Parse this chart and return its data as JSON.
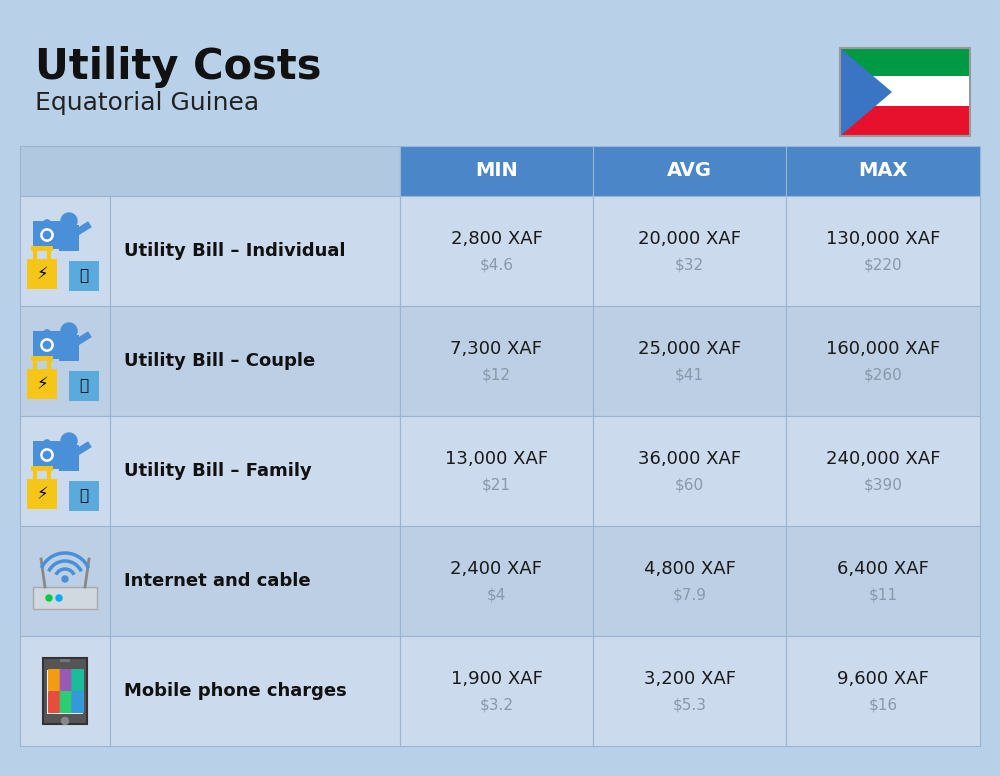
{
  "title": "Utility Costs",
  "subtitle": "Equatorial Guinea",
  "bg_color": "#b8d0e8",
  "header_bg": "#4a86c8",
  "row_bg_odd": "#ccdaee",
  "row_bg_even": "#bccfe4",
  "header_text_color": "#ffffff",
  "main_value_color": "#1a1a1a",
  "sub_value_color": "#8899aa",
  "label_color": "#111111",
  "col_headers": [
    "MIN",
    "AVG",
    "MAX"
  ],
  "rows": [
    {
      "label": "Utility Bill – Individual",
      "icon": "utility",
      "min_xaf": "2,800 XAF",
      "min_usd": "$4.6",
      "avg_xaf": "20,000 XAF",
      "avg_usd": "$32",
      "max_xaf": "130,000 XAF",
      "max_usd": "$220"
    },
    {
      "label": "Utility Bill – Couple",
      "icon": "utility",
      "min_xaf": "7,300 XAF",
      "min_usd": "$12",
      "avg_xaf": "25,000 XAF",
      "avg_usd": "$41",
      "max_xaf": "160,000 XAF",
      "max_usd": "$260"
    },
    {
      "label": "Utility Bill – Family",
      "icon": "utility",
      "min_xaf": "13,000 XAF",
      "min_usd": "$21",
      "avg_xaf": "36,000 XAF",
      "avg_usd": "$60",
      "max_xaf": "240,000 XAF",
      "max_usd": "$390"
    },
    {
      "label": "Internet and cable",
      "icon": "internet",
      "min_xaf": "2,400 XAF",
      "min_usd": "$4",
      "avg_xaf": "4,800 XAF",
      "avg_usd": "$7.9",
      "max_xaf": "6,400 XAF",
      "max_usd": "$11"
    },
    {
      "label": "Mobile phone charges",
      "icon": "mobile",
      "min_xaf": "1,900 XAF",
      "min_usd": "$3.2",
      "avg_xaf": "3,200 XAF",
      "avg_usd": "$5.3",
      "max_xaf": "9,600 XAF",
      "max_usd": "$16"
    }
  ],
  "flag_colors": {
    "green": "#009A44",
    "white": "#ffffff",
    "red": "#E8112D",
    "blue_triangle": "#3A75C4"
  },
  "title_fontsize": 30,
  "subtitle_fontsize": 18,
  "header_fontsize": 14,
  "label_fontsize": 13,
  "value_fontsize": 13,
  "subval_fontsize": 11
}
